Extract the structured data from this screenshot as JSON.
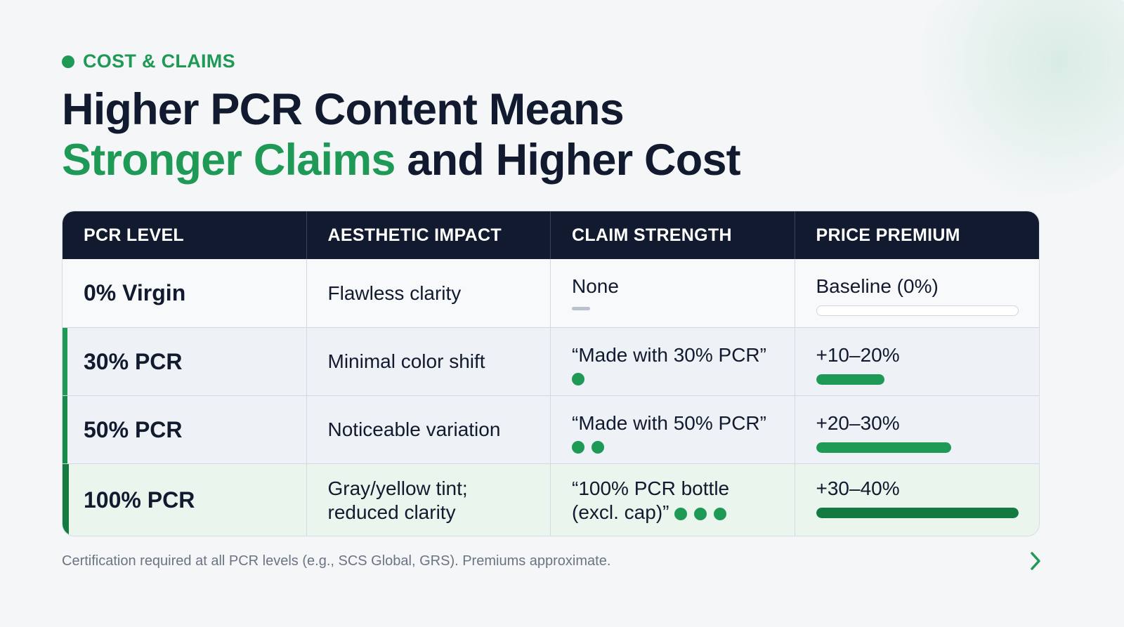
{
  "kicker": "COST & CLAIMS",
  "title": {
    "line1": "Higher PCR Content Means",
    "accent": "Stronger Claims",
    "rest": " and Higher Cost"
  },
  "table": {
    "headers": [
      "PCR LEVEL",
      "AESTHETIC IMPACT",
      "CLAIM STRENGTH",
      "PRICE PREMIUM"
    ],
    "rows": [
      {
        "level": "0% Virgin",
        "aesthetic": "Flawless clarity",
        "claim": "None",
        "claim_dots": 0,
        "premium": "Baseline (0%)",
        "premium_fill": 0
      },
      {
        "level": "30% PCR",
        "aesthetic": "Minimal color shift",
        "claim": "“Made with 30% PCR”",
        "claim_dots": 1,
        "premium": "+10–20%",
        "premium_fill": 0.34
      },
      {
        "level": "50% PCR",
        "aesthetic": "Noticeable variation",
        "claim": "“Made with 50% PCR”",
        "claim_dots": 2,
        "premium": "+20–30%",
        "premium_fill": 0.67
      },
      {
        "level": "100% PCR",
        "aesthetic_line1": "Gray/yellow tint;",
        "aesthetic_line2": "reduced clarity",
        "claim_line1": "“100% PCR bottle",
        "claim_line2": "(excl. cap)”",
        "claim_dots": 3,
        "premium": "+30–40%",
        "premium_fill": 1.0
      }
    ]
  },
  "footnote": "Certification required at all PCR levels (e.g., SCS Global, GRS). Premiums approximate.",
  "icons": {
    "kicker": "dot-icon",
    "next": "chevron-right-icon"
  },
  "colors": {
    "accent": "#1e9a56",
    "dark": "#111a2e",
    "header_bg": "#111a2e"
  }
}
